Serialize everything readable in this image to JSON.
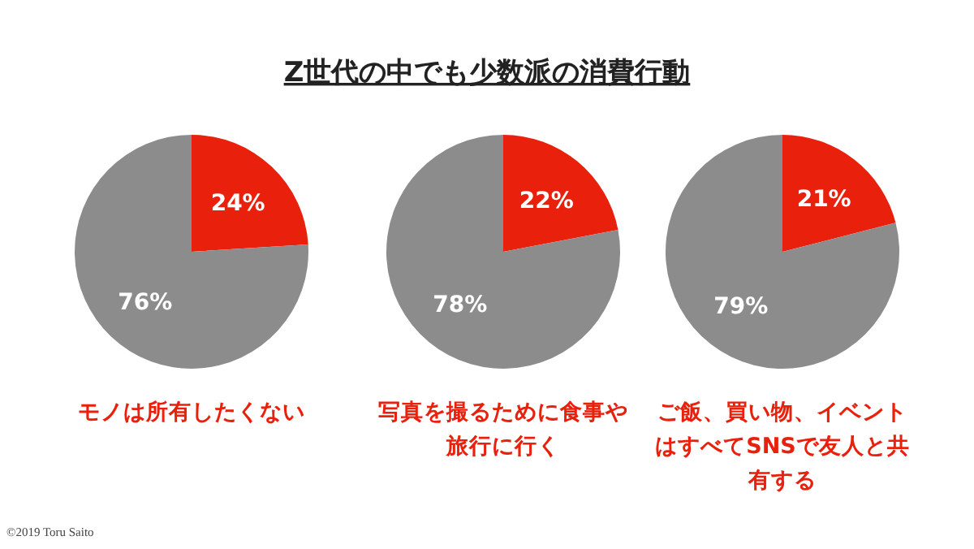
{
  "chart_data": [
    {
      "type": "pie",
      "subtitle": "モノは所有したくない",
      "categories": [
        null,
        null
      ],
      "values": [
        24,
        76
      ],
      "colors": [
        "#e8200c",
        "#8c8c8c"
      ],
      "value_labels": [
        "24%",
        "76%"
      ],
      "annotations": [
        "©2019 Toru Saito"
      ]
    },
    {
      "type": "pie",
      "title": "Z世代の中でも少数派の消費行動",
      "subtitle": "写真を撮るために食事や旅行に行く",
      "categories": [
        null,
        null
      ],
      "values": [
        22,
        78
      ],
      "colors": [
        "#e8200c",
        "#8c8c8c"
      ],
      "value_labels": [
        "22%",
        "78%"
      ]
    },
    {
      "type": "pie",
      "subtitle": "ご飯、買い物、イベントはすべてSNSで友人と共有する",
      "categories": [
        null,
        null
      ],
      "values": [
        21,
        79
      ],
      "colors": [
        "#e8200c",
        "#8c8c8c"
      ],
      "value_labels": [
        "21%",
        "79%"
      ]
    }
  ]
}
